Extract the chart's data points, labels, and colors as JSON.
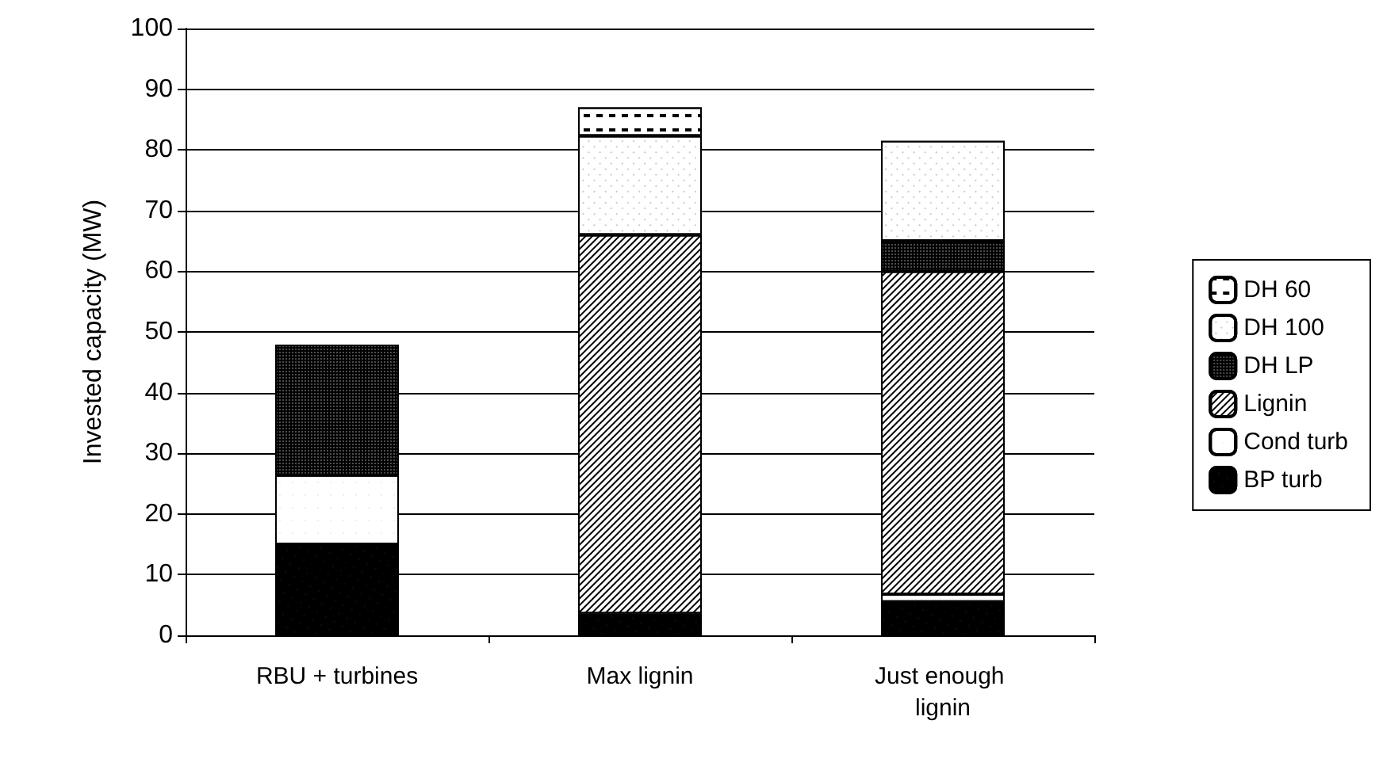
{
  "chart_data": {
    "type": "bar",
    "stacked": true,
    "ylabel": "Invested capacity (MW)",
    "categories": [
      "RBU + turbines",
      "Max lignin",
      "Just enough lignin"
    ],
    "series": [
      {
        "name": "BP turb",
        "color": "#000000",
        "values": [
          15,
          3.6,
          5.5
        ]
      },
      {
        "name": "Cond turb",
        "color": "#ffffff",
        "values": [
          11.4,
          0,
          1.3
        ]
      },
      {
        "name": "Lignin",
        "color": "#ffffff",
        "values": [
          0,
          62.4,
          53.2
        ]
      },
      {
        "name": "DH LP",
        "color": "#000000",
        "values": [
          21.5,
          0,
          5
        ]
      },
      {
        "name": "DH 100",
        "color": "#ffffff",
        "values": [
          0,
          16.3,
          16.5
        ]
      },
      {
        "name": "DH 60",
        "color": "#ffffff",
        "values": [
          0,
          4.7,
          0
        ]
      }
    ],
    "ylim": [
      0,
      100
    ],
    "yticks": [
      0,
      10,
      20,
      30,
      40,
      50,
      60,
      70,
      80,
      90,
      100
    ],
    "grid": "y",
    "legend": "right"
  }
}
